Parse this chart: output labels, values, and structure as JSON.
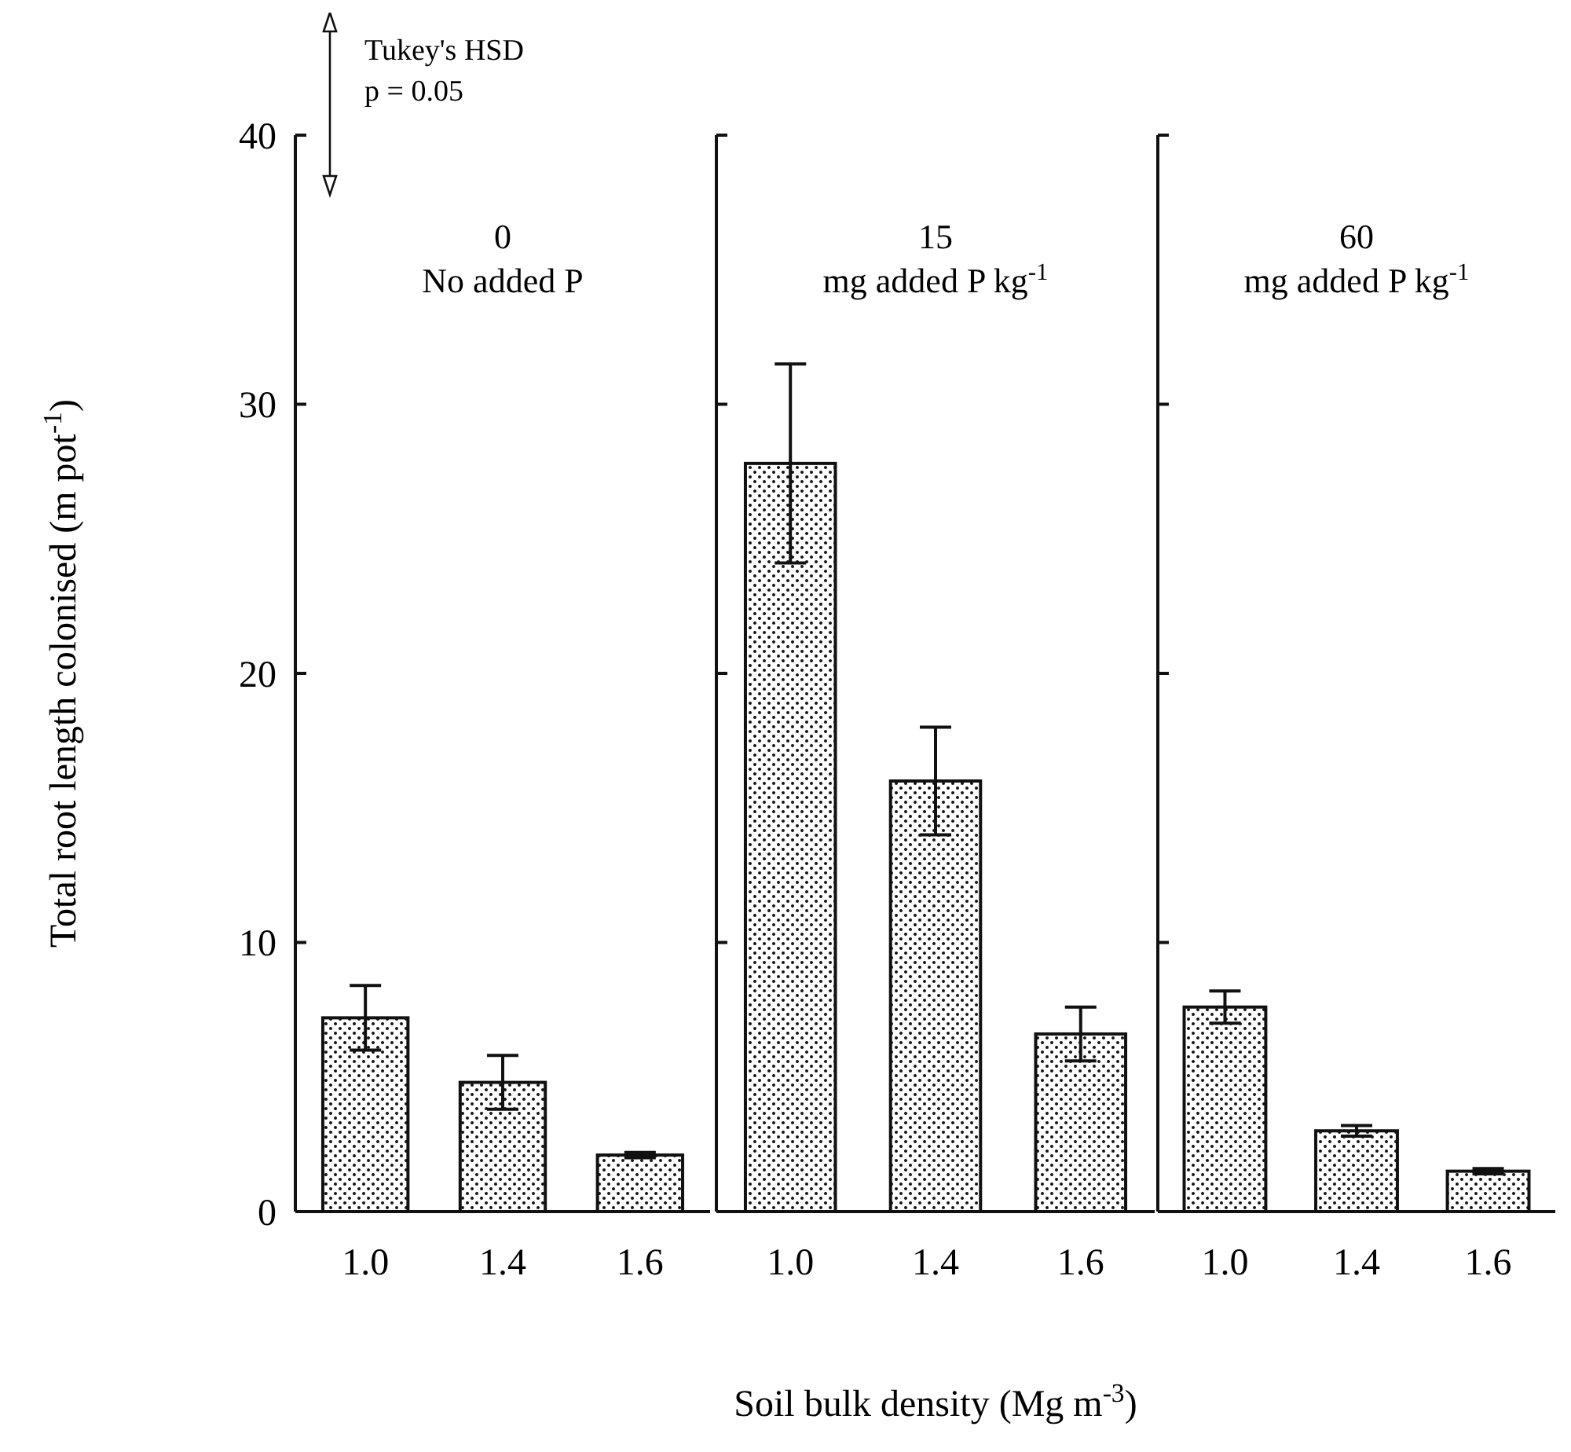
{
  "chart_data": [
    {
      "type": "bar",
      "title": "0",
      "subtitle": "No added P",
      "ylabel": "Total root length colonised (m pot$^{-1}$)",
      "annotations": [
        "Tukey's HSD",
        "p = 0.05"
      ],
      "categories": [
        "1.0",
        "1.4",
        "1.6"
      ],
      "values": [
        7.2,
        4.8,
        2.1
      ],
      "errors": [
        1.2,
        1.0,
        0.1
      ],
      "color": "#111111",
      "ylim": [
        0,
        40
      ],
      "yticks": [
        0,
        10,
        20,
        30,
        40
      ]
    },
    {
      "type": "bar",
      "title": "15",
      "subtitle": "mg added P kg$^{-1}$",
      "xlabel": "Soil bulk density (Mg m$^{-3}$)",
      "categories": [
        "1.0",
        "1.4",
        "1.6"
      ],
      "values": [
        27.8,
        16.0,
        6.6
      ],
      "errors": [
        3.7,
        2.0,
        1.0
      ],
      "color": "#111111",
      "ylim": [
        0,
        40
      ],
      "yticks": [
        0,
        10,
        20,
        30,
        40
      ],
      "tick_labels": "x"
    },
    {
      "type": "bar",
      "title": "60",
      "subtitle": "mg added P kg$^{-1}$",
      "categories": [
        "1.0",
        "1.4",
        "1.6"
      ],
      "values": [
        7.6,
        3.0,
        1.5
      ],
      "errors": [
        0.6,
        0.2,
        0.1
      ],
      "color": "#111111",
      "ylim": [
        0,
        40
      ],
      "yticks": [
        0,
        10,
        20,
        30,
        40
      ],
      "tick_labels": "x"
    }
  ]
}
